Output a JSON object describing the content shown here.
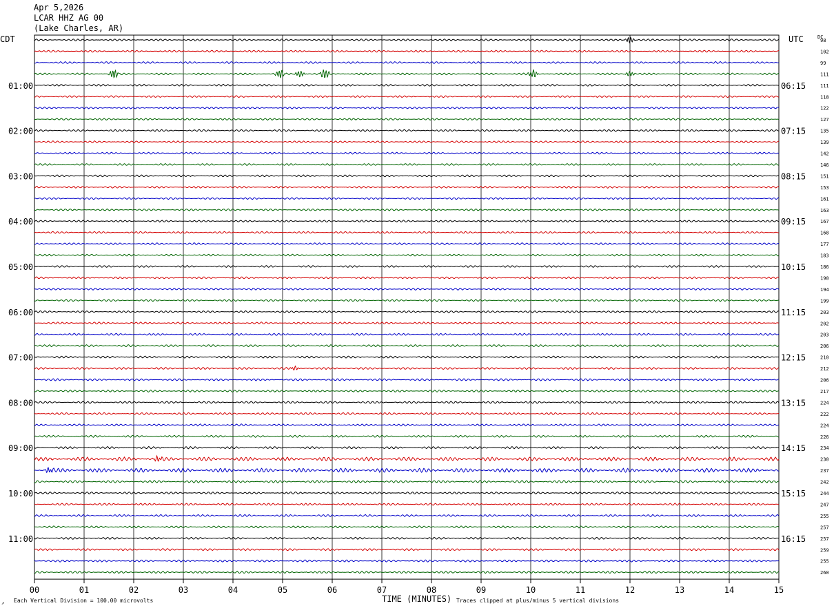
{
  "header": {
    "date": "Apr 5,2026",
    "station": "LCAR HHZ AG 00",
    "location": "(Lake Charles, AR)"
  },
  "left_zone_label": "CDT",
  "right_zone_label": "UTC",
  "dc_label": "DC",
  "footer": {
    "scale_note": "Each Vertical Division =  100.00 microvolts",
    "clip_note": "Traces clipped at plus/minus 5 vertical divisions",
    "corner_mark": "↗"
  },
  "colors": {
    "cycle": [
      "#000000",
      "#d40000",
      "#0000c8",
      "#006400"
    ],
    "grid": "#000000",
    "background": "#ffffff"
  },
  "chart_data": {
    "type": "line",
    "title": "LCAR HHZ AG 00",
    "xlabel": "TIME (MINUTES)",
    "ylabel": "",
    "xlim": [
      0,
      15
    ],
    "x_ticks": [
      "00",
      "01",
      "02",
      "03",
      "04",
      "05",
      "06",
      "07",
      "08",
      "09",
      "10",
      "11",
      "12",
      "13",
      "14",
      "15"
    ],
    "traces_per_hour": 4,
    "minutes_per_trace": 15,
    "trace_count": 48,
    "left_hour_labels": [
      "01:00",
      "02:00",
      "03:00",
      "04:00",
      "05:00",
      "06:00",
      "07:00",
      "08:00",
      "09:00",
      "10:00",
      "11:00"
    ],
    "left_label_trace_index": [
      4,
      8,
      12,
      16,
      20,
      24,
      28,
      32,
      36,
      40,
      44
    ],
    "right_hour_labels": [
      "06:15",
      "07:15",
      "08:15",
      "09:15",
      "10:15",
      "11:15",
      "12:15",
      "13:15",
      "14:15",
      "15:15",
      "16:15"
    ],
    "dc_offsets": [
      98,
      102,
      99,
      111,
      111,
      118,
      122,
      127,
      135,
      139,
      142,
      146,
      151,
      153,
      161,
      163,
      167,
      168,
      177,
      183,
      186,
      190,
      194,
      199,
      203,
      202,
      203,
      206,
      210,
      212,
      206,
      217,
      224,
      222,
      224,
      226,
      234,
      230,
      237,
      242,
      244,
      247,
      255,
      257,
      257,
      259,
      255,
      260
    ],
    "events": [
      {
        "trace": 3,
        "minute": 1.6,
        "amplitude": 2.2
      },
      {
        "trace": 3,
        "minute": 4.95,
        "amplitude": 2.0
      },
      {
        "trace": 3,
        "minute": 5.35,
        "amplitude": 1.6
      },
      {
        "trace": 3,
        "minute": 5.85,
        "amplitude": 2.4
      },
      {
        "trace": 3,
        "minute": 10.05,
        "amplitude": 2.0
      },
      {
        "trace": 3,
        "minute": 12.0,
        "amplitude": 1.2
      },
      {
        "trace": 0,
        "minute": 12.0,
        "amplitude": 1.4
      },
      {
        "trace": 29,
        "minute": 5.25,
        "amplitude": 1.0
      },
      {
        "trace": 37,
        "minute": 2.5,
        "amplitude": 1.2
      },
      {
        "trace": 38,
        "minute": 0.3,
        "amplitude": 1.3
      }
    ],
    "noise_level": [
      0.55,
      0.55,
      0.55,
      0.55,
      0.55,
      0.55,
      0.55,
      0.55,
      0.55,
      0.55,
      0.55,
      0.55,
      0.55,
      0.55,
      0.55,
      0.55,
      0.55,
      0.55,
      0.55,
      0.55,
      0.55,
      0.55,
      0.55,
      0.55,
      0.55,
      0.6,
      0.6,
      0.6,
      0.6,
      0.6,
      0.6,
      0.6,
      0.6,
      0.6,
      0.6,
      0.6,
      0.65,
      1.1,
      1.2,
      0.7,
      0.6,
      0.6,
      0.6,
      0.6,
      0.6,
      0.6,
      0.6,
      0.6
    ]
  }
}
